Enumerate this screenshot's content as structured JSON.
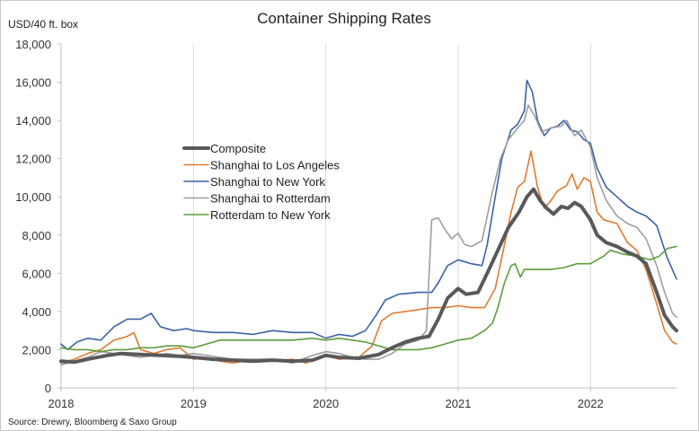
{
  "chart_data": {
    "type": "line",
    "title": "Container Shipping Rates",
    "ylabel": "USD/40 ft. box",
    "xlabel": "",
    "ylim": [
      0,
      18000
    ],
    "yticks": [
      0,
      2000,
      4000,
      6000,
      8000,
      10000,
      12000,
      14000,
      16000,
      18000
    ],
    "ytick_labels": [
      "0",
      "2,000",
      "4,000",
      "6,000",
      "8,000",
      "10,000",
      "12,000",
      "14,000",
      "16,000",
      "18,000"
    ],
    "xlim": [
      2018.0,
      2022.65
    ],
    "xticks": [
      2018,
      2019,
      2020,
      2021,
      2022
    ],
    "xtick_labels": [
      "2018",
      "2019",
      "2020",
      "2021",
      "2022"
    ],
    "grid": "vertical",
    "legend_position": "center-left",
    "source": "Source: Drewry, Bloomberg & Saxo Group",
    "series": [
      {
        "name": "Composite",
        "color": "#595959",
        "width": 4,
        "points": [
          [
            2018.0,
            1400
          ],
          [
            2018.1,
            1350
          ],
          [
            2018.2,
            1500
          ],
          [
            2018.35,
            1700
          ],
          [
            2018.45,
            1800
          ],
          [
            2018.6,
            1750
          ],
          [
            2018.75,
            1700
          ],
          [
            2018.9,
            1650
          ],
          [
            2019.0,
            1600
          ],
          [
            2019.15,
            1500
          ],
          [
            2019.3,
            1450
          ],
          [
            2019.45,
            1400
          ],
          [
            2019.6,
            1450
          ],
          [
            2019.75,
            1400
          ],
          [
            2019.9,
            1450
          ],
          [
            2020.0,
            1700
          ],
          [
            2020.1,
            1600
          ],
          [
            2020.25,
            1550
          ],
          [
            2020.4,
            1750
          ],
          [
            2020.5,
            2100
          ],
          [
            2020.6,
            2400
          ],
          [
            2020.7,
            2600
          ],
          [
            2020.78,
            2700
          ],
          [
            2020.85,
            3600
          ],
          [
            2020.92,
            4700
          ],
          [
            2021.0,
            5200
          ],
          [
            2021.06,
            4900
          ],
          [
            2021.15,
            5000
          ],
          [
            2021.22,
            6000
          ],
          [
            2021.3,
            7200
          ],
          [
            2021.38,
            8400
          ],
          [
            2021.46,
            9200
          ],
          [
            2021.52,
            10000
          ],
          [
            2021.57,
            10400
          ],
          [
            2021.62,
            9800
          ],
          [
            2021.67,
            9400
          ],
          [
            2021.72,
            9100
          ],
          [
            2021.78,
            9500
          ],
          [
            2021.83,
            9400
          ],
          [
            2021.88,
            9700
          ],
          [
            2021.93,
            9500
          ],
          [
            2022.0,
            8800
          ],
          [
            2022.05,
            8000
          ],
          [
            2022.12,
            7600
          ],
          [
            2022.2,
            7400
          ],
          [
            2022.28,
            7100
          ],
          [
            2022.35,
            6900
          ],
          [
            2022.42,
            6500
          ],
          [
            2022.5,
            5000
          ],
          [
            2022.56,
            3800
          ],
          [
            2022.62,
            3200
          ],
          [
            2022.65,
            3000
          ]
        ]
      },
      {
        "name": "Shanghai to Los Angeles",
        "color": "#e07a2f",
        "width": 1.6,
        "points": [
          [
            2018.0,
            1300
          ],
          [
            2018.1,
            1500
          ],
          [
            2018.2,
            1800
          ],
          [
            2018.3,
            2000
          ],
          [
            2018.4,
            2500
          ],
          [
            2018.5,
            2700
          ],
          [
            2018.55,
            2900
          ],
          [
            2018.6,
            2000
          ],
          [
            2018.7,
            1800
          ],
          [
            2018.8,
            2000
          ],
          [
            2018.9,
            2100
          ],
          [
            2019.0,
            1500
          ],
          [
            2019.1,
            1600
          ],
          [
            2019.2,
            1400
          ],
          [
            2019.3,
            1300
          ],
          [
            2019.45,
            1500
          ],
          [
            2019.6,
            1400
          ],
          [
            2019.75,
            1500
          ],
          [
            2019.85,
            1300
          ],
          [
            2020.0,
            1700
          ],
          [
            2020.1,
            1500
          ],
          [
            2020.25,
            1600
          ],
          [
            2020.35,
            2200
          ],
          [
            2020.42,
            3500
          ],
          [
            2020.5,
            3900
          ],
          [
            2020.6,
            4000
          ],
          [
            2020.7,
            4100
          ],
          [
            2020.8,
            4200
          ],
          [
            2020.9,
            4200
          ],
          [
            2021.0,
            4300
          ],
          [
            2021.1,
            4200
          ],
          [
            2021.2,
            4200
          ],
          [
            2021.28,
            5200
          ],
          [
            2021.35,
            7500
          ],
          [
            2021.4,
            9200
          ],
          [
            2021.45,
            10500
          ],
          [
            2021.5,
            10800
          ],
          [
            2021.55,
            12400
          ],
          [
            2021.6,
            10500
          ],
          [
            2021.65,
            9400
          ],
          [
            2021.7,
            9800
          ],
          [
            2021.75,
            10300
          ],
          [
            2021.82,
            10600
          ],
          [
            2021.86,
            11200
          ],
          [
            2021.9,
            10400
          ],
          [
            2021.95,
            11000
          ],
          [
            2022.0,
            10800
          ],
          [
            2022.05,
            9200
          ],
          [
            2022.1,
            8800
          ],
          [
            2022.2,
            8600
          ],
          [
            2022.28,
            7600
          ],
          [
            2022.35,
            7200
          ],
          [
            2022.42,
            6200
          ],
          [
            2022.5,
            4400
          ],
          [
            2022.56,
            3000
          ],
          [
            2022.62,
            2400
          ],
          [
            2022.65,
            2300
          ]
        ]
      },
      {
        "name": "Shanghai to New York",
        "color": "#3a62a7",
        "width": 1.6,
        "points": [
          [
            2018.0,
            2300
          ],
          [
            2018.05,
            2000
          ],
          [
            2018.12,
            2400
          ],
          [
            2018.2,
            2600
          ],
          [
            2018.3,
            2500
          ],
          [
            2018.4,
            3200
          ],
          [
            2018.5,
            3600
          ],
          [
            2018.6,
            3600
          ],
          [
            2018.68,
            3900
          ],
          [
            2018.75,
            3200
          ],
          [
            2018.85,
            3000
          ],
          [
            2018.95,
            3100
          ],
          [
            2019.0,
            3000
          ],
          [
            2019.15,
            2900
          ],
          [
            2019.3,
            2900
          ],
          [
            2019.45,
            2800
          ],
          [
            2019.6,
            3000
          ],
          [
            2019.75,
            2900
          ],
          [
            2019.9,
            2900
          ],
          [
            2020.0,
            2600
          ],
          [
            2020.1,
            2800
          ],
          [
            2020.2,
            2700
          ],
          [
            2020.3,
            3000
          ],
          [
            2020.38,
            3800
          ],
          [
            2020.45,
            4600
          ],
          [
            2020.55,
            4900
          ],
          [
            2020.7,
            5000
          ],
          [
            2020.8,
            5000
          ],
          [
            2020.85,
            5500
          ],
          [
            2020.92,
            6400
          ],
          [
            2021.0,
            6700
          ],
          [
            2021.1,
            6500
          ],
          [
            2021.18,
            6400
          ],
          [
            2021.22,
            7500
          ],
          [
            2021.28,
            10000
          ],
          [
            2021.33,
            12000
          ],
          [
            2021.4,
            13500
          ],
          [
            2021.45,
            13800
          ],
          [
            2021.5,
            14500
          ],
          [
            2021.52,
            16100
          ],
          [
            2021.56,
            15500
          ],
          [
            2021.6,
            14000
          ],
          [
            2021.65,
            13200
          ],
          [
            2021.7,
            13600
          ],
          [
            2021.75,
            13700
          ],
          [
            2021.8,
            14000
          ],
          [
            2021.85,
            13500
          ],
          [
            2021.9,
            13400
          ],
          [
            2021.95,
            13000
          ],
          [
            2022.0,
            12800
          ],
          [
            2022.05,
            11500
          ],
          [
            2022.12,
            10500
          ],
          [
            2022.2,
            10000
          ],
          [
            2022.28,
            9500
          ],
          [
            2022.35,
            9200
          ],
          [
            2022.42,
            9000
          ],
          [
            2022.5,
            8500
          ],
          [
            2022.58,
            6800
          ],
          [
            2022.65,
            5700
          ]
        ]
      },
      {
        "name": "Shanghai to Rotterdam",
        "color": "#9e9e9e",
        "width": 1.6,
        "points": [
          [
            2018.0,
            1200
          ],
          [
            2018.1,
            1400
          ],
          [
            2018.2,
            1600
          ],
          [
            2018.3,
            1900
          ],
          [
            2018.4,
            1800
          ],
          [
            2018.5,
            1700
          ],
          [
            2018.6,
            1600
          ],
          [
            2018.7,
            1700
          ],
          [
            2018.8,
            1800
          ],
          [
            2018.9,
            1700
          ],
          [
            2019.0,
            1800
          ],
          [
            2019.1,
            1700
          ],
          [
            2019.2,
            1600
          ],
          [
            2019.3,
            1500
          ],
          [
            2019.45,
            1500
          ],
          [
            2019.6,
            1500
          ],
          [
            2019.75,
            1300
          ],
          [
            2019.9,
            1700
          ],
          [
            2020.0,
            1900
          ],
          [
            2020.1,
            1800
          ],
          [
            2020.2,
            1600
          ],
          [
            2020.3,
            1500
          ],
          [
            2020.4,
            1500
          ],
          [
            2020.5,
            1800
          ],
          [
            2020.6,
            2300
          ],
          [
            2020.7,
            2500
          ],
          [
            2020.76,
            3000
          ],
          [
            2020.8,
            8800
          ],
          [
            2020.85,
            8900
          ],
          [
            2020.9,
            8300
          ],
          [
            2020.95,
            7800
          ],
          [
            2021.0,
            8100
          ],
          [
            2021.05,
            7500
          ],
          [
            2021.1,
            7400
          ],
          [
            2021.18,
            7700
          ],
          [
            2021.25,
            10000
          ],
          [
            2021.32,
            12000
          ],
          [
            2021.38,
            13000
          ],
          [
            2021.45,
            13600
          ],
          [
            2021.5,
            14000
          ],
          [
            2021.53,
            14800
          ],
          [
            2021.58,
            14200
          ],
          [
            2021.63,
            13400
          ],
          [
            2021.7,
            13600
          ],
          [
            2021.78,
            13700
          ],
          [
            2021.82,
            14000
          ],
          [
            2021.88,
            13200
          ],
          [
            2021.93,
            13500
          ],
          [
            2022.0,
            12600
          ],
          [
            2022.05,
            11000
          ],
          [
            2022.12,
            9800
          ],
          [
            2022.2,
            9000
          ],
          [
            2022.28,
            8600
          ],
          [
            2022.35,
            8400
          ],
          [
            2022.42,
            7800
          ],
          [
            2022.5,
            6400
          ],
          [
            2022.56,
            5000
          ],
          [
            2022.62,
            3900
          ],
          [
            2022.65,
            3700
          ]
        ]
      },
      {
        "name": "Rotterdam to New York",
        "color": "#5d9c3b",
        "width": 1.6,
        "points": [
          [
            2018.0,
            2100
          ],
          [
            2018.1,
            2000
          ],
          [
            2018.2,
            2000
          ],
          [
            2018.3,
            1900
          ],
          [
            2018.4,
            2000
          ],
          [
            2018.5,
            2000
          ],
          [
            2018.6,
            2100
          ],
          [
            2018.7,
            2100
          ],
          [
            2018.8,
            2200
          ],
          [
            2018.9,
            2200
          ],
          [
            2019.0,
            2100
          ],
          [
            2019.1,
            2300
          ],
          [
            2019.2,
            2500
          ],
          [
            2019.3,
            2500
          ],
          [
            2019.45,
            2500
          ],
          [
            2019.6,
            2500
          ],
          [
            2019.75,
            2500
          ],
          [
            2019.9,
            2600
          ],
          [
            2020.0,
            2500
          ],
          [
            2020.1,
            2600
          ],
          [
            2020.2,
            2500
          ],
          [
            2020.3,
            2400
          ],
          [
            2020.4,
            2200
          ],
          [
            2020.5,
            2000
          ],
          [
            2020.6,
            2000
          ],
          [
            2020.7,
            2000
          ],
          [
            2020.8,
            2100
          ],
          [
            2020.9,
            2300
          ],
          [
            2021.0,
            2500
          ],
          [
            2021.1,
            2600
          ],
          [
            2021.2,
            3000
          ],
          [
            2021.26,
            3400
          ],
          [
            2021.3,
            4200
          ],
          [
            2021.35,
            5500
          ],
          [
            2021.4,
            6400
          ],
          [
            2021.43,
            6500
          ],
          [
            2021.47,
            5800
          ],
          [
            2021.5,
            6200
          ],
          [
            2021.6,
            6200
          ],
          [
            2021.7,
            6200
          ],
          [
            2021.8,
            6300
          ],
          [
            2021.9,
            6500
          ],
          [
            2022.0,
            6500
          ],
          [
            2022.1,
            6900
          ],
          [
            2022.15,
            7200
          ],
          [
            2022.25,
            7000
          ],
          [
            2022.35,
            6900
          ],
          [
            2022.45,
            6700
          ],
          [
            2022.52,
            6900
          ],
          [
            2022.58,
            7300
          ],
          [
            2022.65,
            7400
          ]
        ]
      }
    ]
  }
}
